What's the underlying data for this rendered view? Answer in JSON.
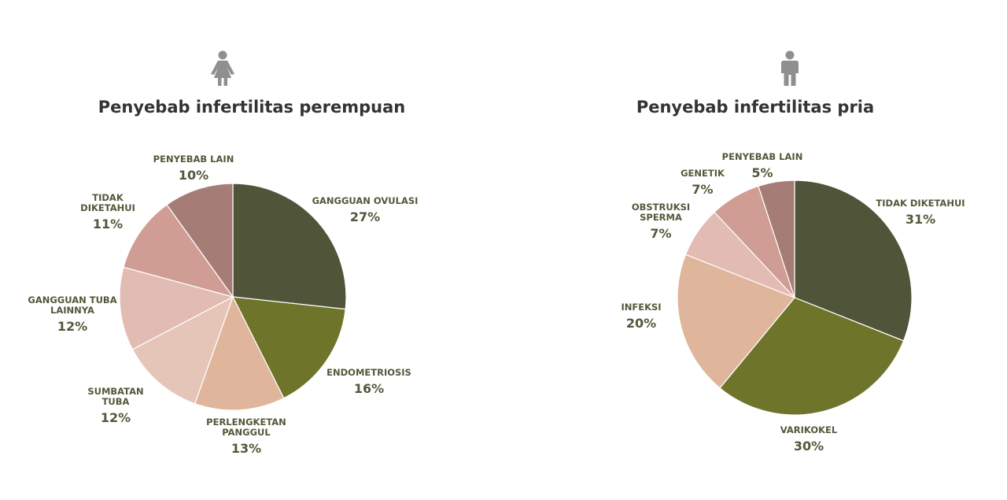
{
  "colors": {
    "text": "#333333",
    "label": "#55573a",
    "icon": "#8f8f8f"
  },
  "female": {
    "icon": "female-person-icon",
    "title": "Penyebab infertilitas perempuan"
  },
  "male": {
    "icon": "male-person-icon",
    "title": "Penyebab infertilitas pria"
  },
  "chart_data": [
    {
      "type": "pie",
      "title": "Penyebab infertilitas perempuan",
      "start_angle_deg": 0,
      "direction": "clockwise",
      "slices": [
        {
          "label": [
            "GANGGUAN OVULASI"
          ],
          "value": 27,
          "pct_label": "27%",
          "color": "#505438"
        },
        {
          "label": [
            "ENDOMETRIOSIS"
          ],
          "value": 16,
          "pct_label": "16%",
          "color": "#6f742b"
        },
        {
          "label": [
            "PERLENGKETAN",
            "PANGGUL"
          ],
          "value": 13,
          "pct_label": "13%",
          "color": "#dfb59c"
        },
        {
          "label": [
            "SUMBATAN",
            "TUBA"
          ],
          "value": 12,
          "pct_label": "12%",
          "color": "#e5c5b7"
        },
        {
          "label": [
            "GANGGUAN TUBA",
            "LAINNYA"
          ],
          "value": 12,
          "pct_label": "12%",
          "color": "#e2bcb2"
        },
        {
          "label": [
            "TIDAK",
            "DIKETAHUI"
          ],
          "value": 11,
          "pct_label": "11%",
          "color": "#cf9d94"
        },
        {
          "label": [
            "PENYEBAB LAIN"
          ],
          "value": 10,
          "pct_label": "10%",
          "color": "#a67d76"
        }
      ]
    },
    {
      "type": "pie",
      "title": "Penyebab infertilitas pria",
      "start_angle_deg": 0,
      "direction": "clockwise",
      "slices": [
        {
          "label": [
            "TIDAK DIKETAHUI"
          ],
          "value": 31,
          "pct_label": "31%",
          "color": "#505438"
        },
        {
          "label": [
            "VARIKOKEL"
          ],
          "value": 30,
          "pct_label": "30%",
          "color": "#6f742b"
        },
        {
          "label": [
            "INFEKSI"
          ],
          "value": 20,
          "pct_label": "20%",
          "color": "#dfb59c"
        },
        {
          "label": [
            "OBSTRUKSI",
            "SPERMA"
          ],
          "value": 7,
          "pct_label": "7%",
          "color": "#e2bcb2"
        },
        {
          "label": [
            "GENETIK"
          ],
          "value": 7,
          "pct_label": "7%",
          "color": "#cf9d94"
        },
        {
          "label": [
            "PENYEBAB LAIN"
          ],
          "value": 5,
          "pct_label": "5%",
          "color": "#a67d76"
        }
      ]
    }
  ]
}
